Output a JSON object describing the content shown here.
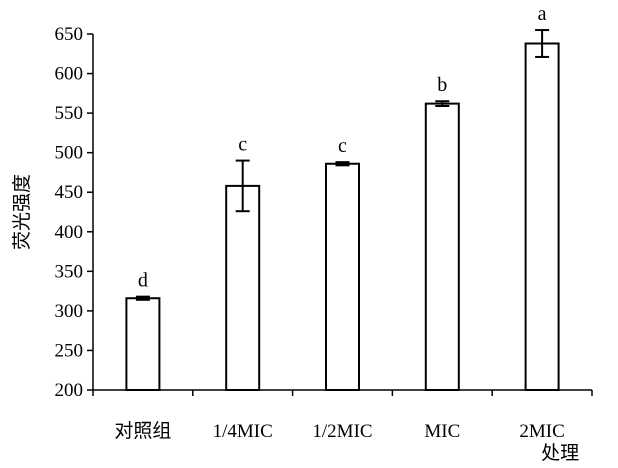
{
  "chart_data": {
    "type": "bar",
    "title": "",
    "xlabel": "处理",
    "ylabel": "荧光强度",
    "categories": [
      "对照组",
      "1/4MIC",
      "1/2MIC",
      "MIC",
      "2MIC"
    ],
    "values": [
      316,
      458,
      486,
      562,
      638
    ],
    "errors": [
      2,
      32,
      2,
      3,
      17
    ],
    "significance": [
      "d",
      "c",
      "c",
      "b",
      "a"
    ],
    "ylim": [
      200,
      650
    ],
    "yticks": [
      200,
      250,
      300,
      350,
      400,
      450,
      500,
      550,
      600,
      650
    ],
    "grid": false,
    "legend": "none",
    "bar_fill": "#ffffff",
    "bar_stroke": "#000000"
  }
}
